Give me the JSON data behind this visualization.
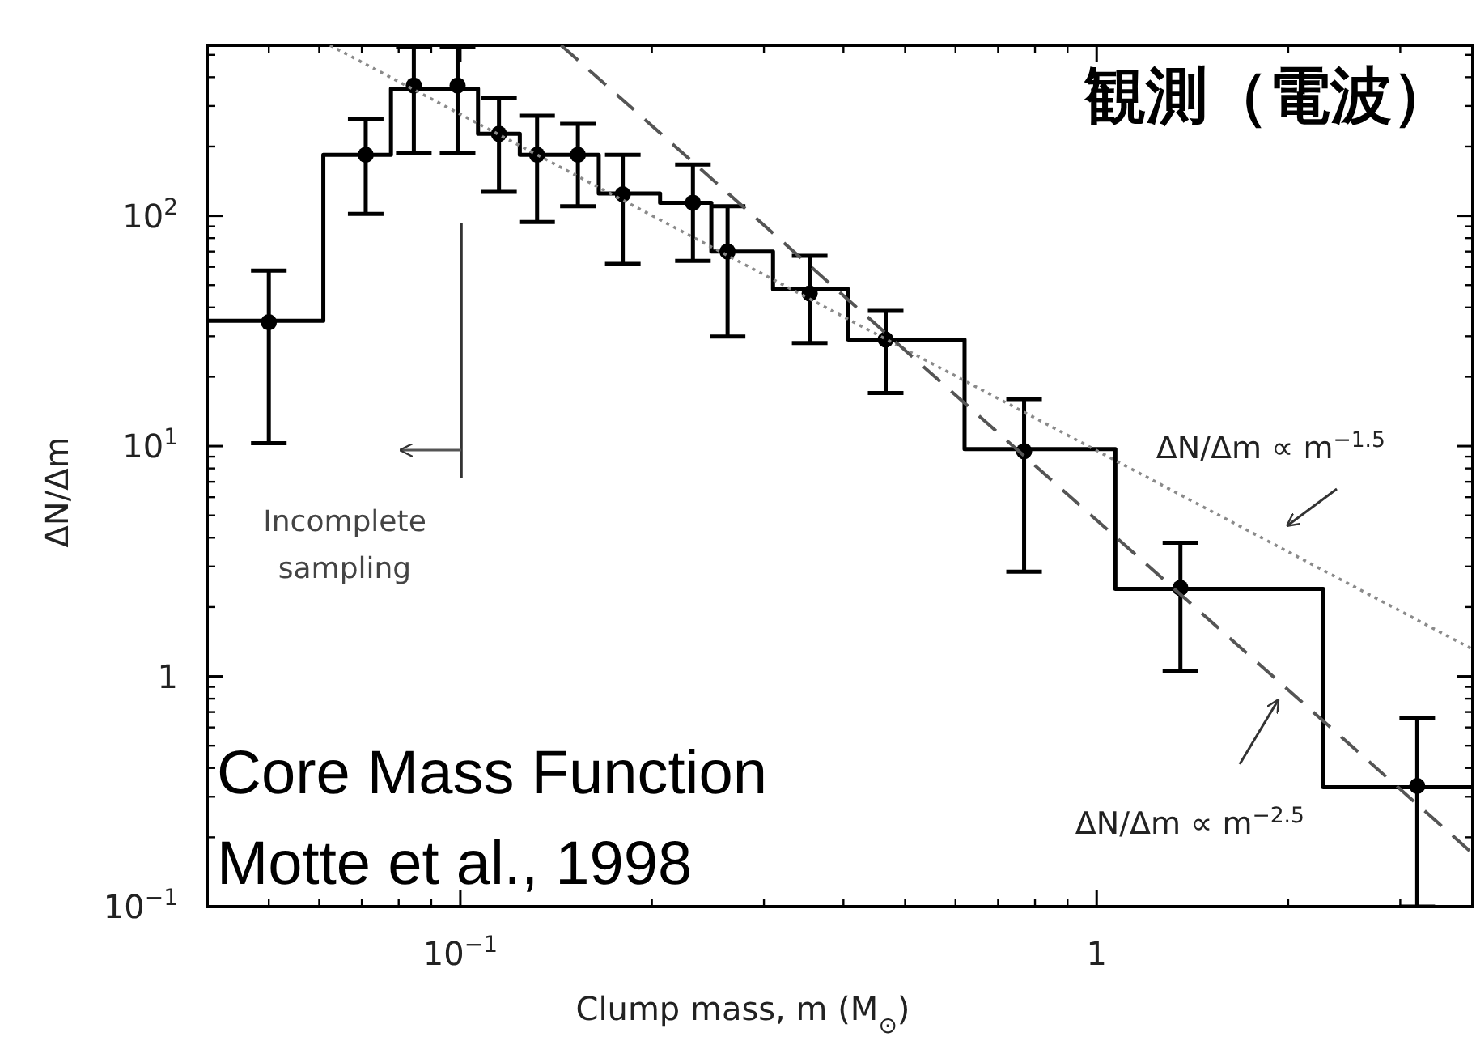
{
  "chart_data": {
    "type": "histogram",
    "title": "観測（電波）",
    "xlabel": "Clump mass, m (M$_{⊙}$)",
    "ylabel": "ΔN/Δm",
    "log": "xy",
    "xlim": [
      0.04,
      3.9
    ],
    "ylim": [
      0.1,
      550
    ],
    "xticks": [
      {
        "value": 0.1,
        "label": "10$^{−1}$"
      },
      1
    ],
    "yticks": [
      {
        "value": 0.1,
        "label": "10$^{−1}$"
      },
      1,
      {
        "value": 10,
        "label": "10$^{1}$"
      },
      {
        "value": 100,
        "label": "10$^{2}$"
      }
    ],
    "grid": false,
    "series": [
      {
        "color": "#000000",
        "bins": [
          0.04,
          0.0609,
          0.0778,
          0.1066,
          0.124,
          0.165,
          0.206,
          0.248,
          0.31,
          0.407,
          0.62,
          1.07,
          2.27,
          3.9
        ],
        "values": [
          35,
          184,
          357,
          227,
          184,
          125,
          114,
          70,
          48,
          29,
          9.7,
          2.4,
          0.33
        ]
      },
      {
        "type": "scatter",
        "color": "#000000",
        "marker": "circle",
        "x": [
          0.05,
          0.071,
          0.0845,
          0.099,
          0.115,
          0.132,
          0.153,
          0.18,
          0.232,
          0.263,
          0.354,
          0.466,
          0.769,
          1.354,
          3.19
        ],
        "values": [
          34.5,
          184,
          368,
          368,
          227,
          184,
          184,
          124,
          114,
          70,
          46,
          29,
          9.5,
          2.42,
          0.334
        ],
        "errors": [
          [
            10.3,
            57.8
          ],
          [
            102,
            263
          ],
          [
            187,
            542
          ],
          [
            187,
            542
          ],
          [
            127,
            324
          ],
          [
            94,
            272
          ],
          [
            110,
            251
          ],
          [
            61.8,
            184
          ],
          [
            63.7,
            167
          ],
          [
            29.9,
            110
          ],
          [
            28,
            67
          ],
          [
            17,
            38.7
          ],
          [
            2.85,
            16
          ],
          [
            1.05,
            3.8
          ],
          [
            0.1,
            0.658
          ]
        ]
      },
      {
        "type": "line",
        "color": "#8a8a8a",
        "line_style": "dotted",
        "x": [
          0.0624,
          3.9
        ],
        "values": [
          550,
          1.31
        ]
      },
      {
        "type": "line",
        "color": "#555555",
        "line_style": "dashed",
        "x": [
          0.144,
          3.9
        ],
        "values": [
          550,
          0.17
        ]
      }
    ],
    "annotations": [
      "ΔN/Δm ∝ m$^{−1.5}$",
      "ΔN/Δm ∝ m$^{−2.5}$",
      "Incomplete\nsampling",
      "Core Mass Function",
      "Motte et al., 1998"
    ]
  }
}
